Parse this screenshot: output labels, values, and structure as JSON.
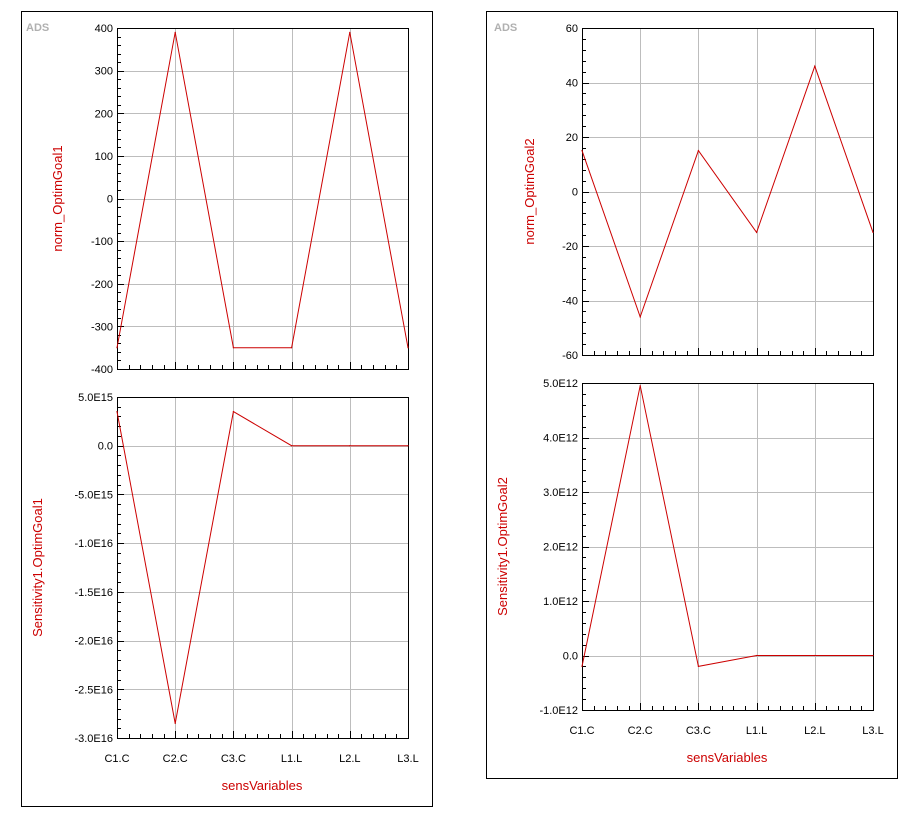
{
  "panels": [
    {
      "watermark": "ADS",
      "xlabel": "sensVariables",
      "charts": [
        {
          "type": "line",
          "categories": [
            "C1.C",
            "C2.C",
            "C3.C",
            "L1.L",
            "L2.L",
            "L3.L"
          ],
          "series": [
            {
              "values": [
                -350,
                390,
                -350,
                -350,
                390,
                -350
              ],
              "color": "#cc0000"
            }
          ],
          "ylabel": "norm_OptimGoal1",
          "ylim": [
            -400,
            400
          ],
          "yticks": [
            400,
            300,
            200,
            100,
            0,
            -100,
            -200,
            -300,
            -400
          ],
          "ytick_labels": [
            "400",
            "300",
            "200",
            "100",
            "0",
            "-100",
            "-200",
            "-300",
            "-400"
          ],
          "grid": true
        },
        {
          "type": "line",
          "categories": [
            "C1.C",
            "C2.C",
            "C3.C",
            "L1.L",
            "L2.L",
            "L3.L"
          ],
          "series": [
            {
              "values": [
                3500000000000000.0,
                -2.85e+16,
                3500000000000000.0,
                0,
                0,
                0
              ],
              "color": "#cc0000"
            }
          ],
          "ylabel": "Sensitivity1.OptimGoal1",
          "ylim": [
            -3e+16,
            5000000000000000.0
          ],
          "yticks": [
            5000000000000000.0,
            0,
            -5000000000000000.0,
            -1e+16,
            -1.5e+16,
            -2e+16,
            -2.5e+16,
            -3e+16
          ],
          "ytick_labels": [
            "5.0E15",
            "0.0",
            "-5.0E15",
            "-1.0E16",
            "-1.5E16",
            "-2.0E16",
            "-2.5E16",
            "-3.0E16"
          ],
          "grid": true
        }
      ]
    },
    {
      "watermark": "ADS",
      "xlabel": "sensVariables",
      "charts": [
        {
          "type": "line",
          "categories": [
            "C1.C",
            "C2.C",
            "C3.C",
            "L1.L",
            "L2.L",
            "L3.L"
          ],
          "series": [
            {
              "values": [
                15,
                -46,
                15,
                -15,
                46,
                -15
              ],
              "color": "#cc0000"
            }
          ],
          "ylabel": "norm_OptimGoal2",
          "ylim": [
            -60,
            60
          ],
          "yticks": [
            60,
            40,
            20,
            0,
            -20,
            -40,
            -60
          ],
          "ytick_labels": [
            "60",
            "40",
            "20",
            "0",
            "-20",
            "-40",
            "-60"
          ],
          "grid": true
        },
        {
          "type": "line",
          "categories": [
            "C1.C",
            "C2.C",
            "C3.C",
            "L1.L",
            "L2.L",
            "L3.L"
          ],
          "series": [
            {
              "values": [
                -200000000000.0,
                4950000000000.0,
                -200000000000.0,
                0,
                0,
                0
              ],
              "color": "#cc0000"
            }
          ],
          "ylabel": "Sensitivity1.OptimGoal2",
          "ylim": [
            -1000000000000.0,
            5000000000000.0
          ],
          "yticks": [
            5000000000000.0,
            4000000000000.0,
            3000000000000.0,
            2000000000000.0,
            1000000000000.0,
            0,
            -1000000000000.0
          ],
          "ytick_labels": [
            "5.0E12",
            "4.0E12",
            "3.0E12",
            "2.0E12",
            "1.0E12",
            "0.0",
            "-1.0E12"
          ],
          "grid": true
        }
      ]
    }
  ]
}
